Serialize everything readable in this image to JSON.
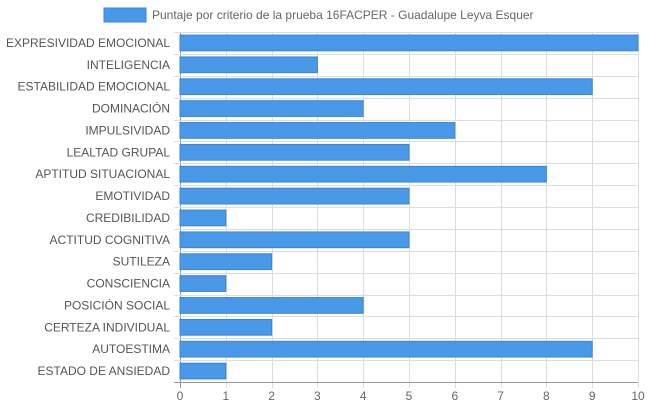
{
  "chart_data": {
    "type": "bar",
    "orientation": "horizontal",
    "title": "",
    "xlabel": "",
    "ylabel": "",
    "xlim": [
      0,
      10
    ],
    "x_ticks": [
      "0",
      "1",
      "2",
      "3",
      "4",
      "5",
      "6",
      "7",
      "8",
      "9",
      "10"
    ],
    "grid": true,
    "legend_position": "top",
    "categories": [
      "EXPRESIVIDAD EMOCIONAL",
      "INTELIGENCIA",
      "ESTABILIDAD EMOCIONAL",
      "DOMINACIÓN",
      "IMPULSIVIDAD",
      "LEALTAD GRUPAL",
      "APTITUD SITUACIONAL",
      "EMOTIVIDAD",
      "CREDIBILIDAD",
      "ACTITUD COGNITIVA",
      "SUTILEZA",
      "CONSCIENCIA",
      "POSICIÓN SOCIAL",
      "CERTEZA INDIVIDUAL",
      "AUTOESTIMA",
      "ESTADO DE ANSIEDAD"
    ],
    "series": [
      {
        "name": "Puntaje por criterio de la prueba 16FACPER - Guadalupe Leyva Esquer",
        "values": [
          10,
          3,
          9,
          4,
          6,
          5,
          8,
          5,
          1,
          5,
          2,
          1,
          4,
          2,
          9,
          1
        ]
      }
    ],
    "colors": {
      "bar_fill": "#4A98E8",
      "bar_stroke": "#3A85D6",
      "grid": "#DDDDDD",
      "axis": "#999999"
    }
  }
}
